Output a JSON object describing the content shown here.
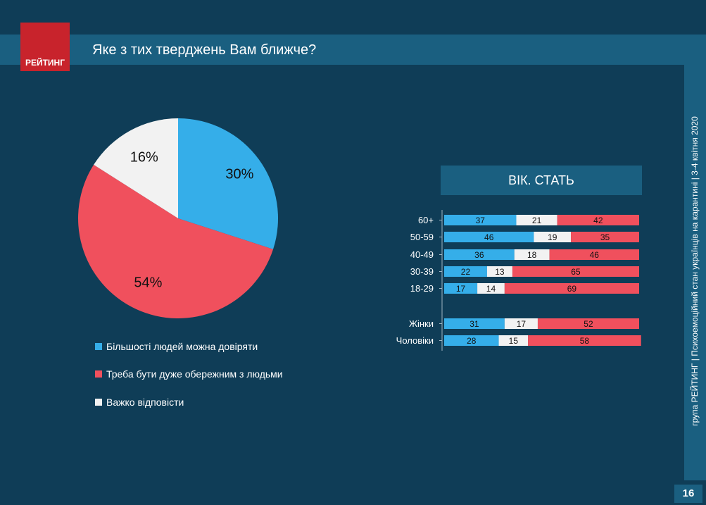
{
  "header": {
    "logo_text": "РЕЙТИНГ",
    "title": "Яке з тих тверджень Вам ближче?"
  },
  "side_text": "група РЕЙТИНГ | Психоемоційний стан українців на карантині | 3-4 квітня 2020",
  "page_number": "16",
  "colors": {
    "background": "#0f3d57",
    "band": "#1a5f80",
    "logo": "#c8232c",
    "blue": "#35aee9",
    "red": "#f0505d",
    "white": "#f2f2f2"
  },
  "chart_data": [
    {
      "type": "pie",
      "title": "",
      "slices": [
        {
          "label": "Більшості людей можна довіряти",
          "value": 30,
          "value_label": "30%",
          "color": "#35aee9"
        },
        {
          "label": "Треба бути дуже обережним з людьми",
          "value": 54,
          "value_label": "54%",
          "color": "#f0505d"
        },
        {
          "label": "Важко відповісти",
          "value": 16,
          "value_label": "16%",
          "color": "#f2f2f2"
        }
      ]
    },
    {
      "type": "bar",
      "orientation": "horizontal",
      "stacked": true,
      "title": "ВІК. СТАТЬ",
      "categories": [
        "60+",
        "50-59",
        "40-49",
        "30-39",
        "18-29",
        "Жінки",
        "Чоловіки"
      ],
      "series": [
        {
          "name": "Більшості людей можна довіряти",
          "color": "#35aee9",
          "values": [
            37,
            46,
            36,
            22,
            17,
            31,
            28
          ]
        },
        {
          "name": "Важко відповісти",
          "color": "#f2f2f2",
          "values": [
            21,
            19,
            18,
            13,
            14,
            17,
            15
          ]
        },
        {
          "name": "Треба бути дуже обережним з людьми",
          "color": "#f0505d",
          "values": [
            42,
            35,
            46,
            65,
            69,
            52,
            58
          ]
        }
      ],
      "xlim": [
        0,
        100
      ]
    }
  ]
}
